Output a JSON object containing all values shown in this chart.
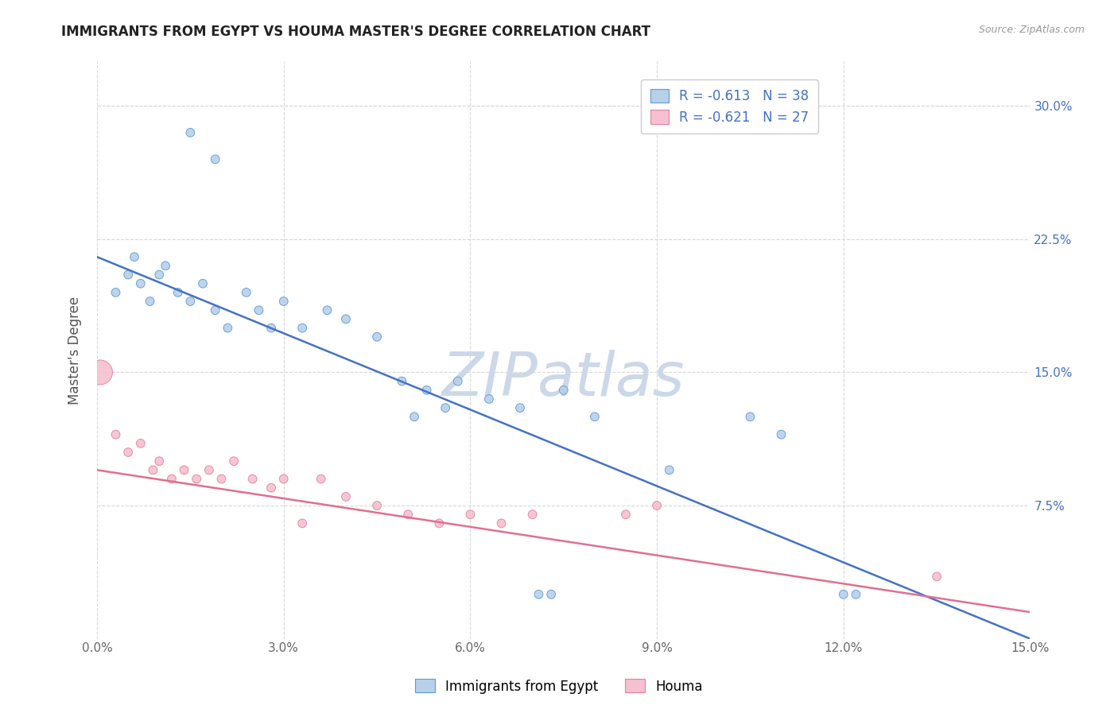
{
  "title": "IMMIGRANTS FROM EGYPT VS HOUMA MASTER'S DEGREE CORRELATION CHART",
  "source_text": "Source: ZipAtlas.com",
  "ylabel": "Master's Degree",
  "x_tick_labels": [
    "0.0%",
    "3.0%",
    "6.0%",
    "9.0%",
    "12.0%",
    "15.0%"
  ],
  "x_tick_values": [
    0.0,
    3.0,
    6.0,
    9.0,
    12.0,
    15.0
  ],
  "y_tick_labels": [
    "7.5%",
    "15.0%",
    "22.5%",
    "30.0%"
  ],
  "y_tick_values": [
    7.5,
    15.0,
    22.5,
    30.0
  ],
  "xlim": [
    0.0,
    15.0
  ],
  "ylim": [
    0.0,
    32.5
  ],
  "legend_blue_r": "R = -0.613",
  "legend_blue_n": "N = 38",
  "legend_pink_r": "R = -0.621",
  "legend_pink_n": "N = 27",
  "legend_blue_label": "Immigrants from Egypt",
  "legend_pink_label": "Houma",
  "blue_fill": "#b8d0ea",
  "pink_fill": "#f5c0d0",
  "blue_edge": "#5b9bd5",
  "pink_edge": "#e8809a",
  "blue_line": "#4472c4",
  "pink_line": "#e07090",
  "watermark": "ZIPatlas",
  "watermark_color": "#ccd8e8",
  "blue_scatter_x": [
    1.5,
    1.9,
    0.3,
    0.5,
    0.6,
    0.7,
    0.85,
    1.0,
    1.1,
    1.3,
    1.5,
    1.7,
    1.9,
    2.1,
    2.4,
    2.6,
    2.8,
    3.0,
    3.3,
    3.7,
    4.0,
    4.5,
    4.9,
    5.3,
    5.8,
    6.3,
    6.8,
    7.5,
    8.0,
    9.2,
    10.5,
    11.0,
    12.0,
    12.2,
    5.1,
    5.6,
    7.1,
    7.3
  ],
  "blue_scatter_y": [
    28.5,
    27.0,
    19.5,
    20.5,
    21.5,
    20.0,
    19.0,
    20.5,
    21.0,
    19.5,
    19.0,
    20.0,
    18.5,
    17.5,
    19.5,
    18.5,
    17.5,
    19.0,
    17.5,
    18.5,
    18.0,
    17.0,
    14.5,
    14.0,
    14.5,
    13.5,
    13.0,
    14.0,
    12.5,
    9.5,
    12.5,
    11.5,
    2.5,
    2.5,
    12.5,
    13.0,
    2.5,
    2.5
  ],
  "blue_scatter_sizes": [
    60,
    60,
    60,
    60,
    60,
    60,
    60,
    60,
    60,
    60,
    60,
    60,
    60,
    60,
    60,
    60,
    60,
    60,
    60,
    60,
    60,
    60,
    60,
    60,
    60,
    60,
    60,
    60,
    60,
    60,
    60,
    60,
    60,
    60,
    60,
    60,
    60,
    60
  ],
  "pink_scatter_x": [
    0.05,
    0.3,
    0.5,
    0.7,
    0.9,
    1.0,
    1.2,
    1.4,
    1.6,
    1.8,
    2.0,
    2.2,
    2.5,
    2.8,
    3.0,
    3.3,
    3.6,
    4.0,
    4.5,
    5.0,
    5.5,
    6.0,
    6.5,
    7.0,
    8.5,
    9.0,
    13.5
  ],
  "pink_scatter_y": [
    15.0,
    11.5,
    10.5,
    11.0,
    9.5,
    10.0,
    9.0,
    9.5,
    9.0,
    9.5,
    9.0,
    10.0,
    9.0,
    8.5,
    9.0,
    6.5,
    9.0,
    8.0,
    7.5,
    7.0,
    6.5,
    7.0,
    6.5,
    7.0,
    7.0,
    7.5,
    3.5
  ],
  "pink_scatter_sizes": [
    500,
    60,
    60,
    60,
    60,
    60,
    60,
    60,
    60,
    60,
    60,
    60,
    60,
    60,
    60,
    60,
    60,
    60,
    60,
    60,
    60,
    60,
    60,
    60,
    60,
    60,
    60
  ],
  "blue_line_x0": 0.0,
  "blue_line_y0": 21.5,
  "blue_line_x1": 15.0,
  "blue_line_y1": 0.0,
  "pink_line_x0": 0.0,
  "pink_line_y0": 9.5,
  "pink_line_x1": 15.0,
  "pink_line_y1": 1.5,
  "background_color": "#ffffff",
  "grid_color": "#d8d8d8",
  "title_color": "#222222",
  "tick_label_color": "#666666",
  "ylabel_color": "#555555",
  "rn_label_color": "#4472c4"
}
